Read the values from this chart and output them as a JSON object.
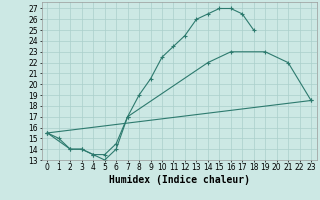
{
  "xlabel": "Humidex (Indice chaleur)",
  "background_color": "#cce8e4",
  "grid_color": "#aacfcb",
  "line_color": "#2d7a6e",
  "xlim": [
    -0.5,
    23.5
  ],
  "ylim": [
    13,
    27.6
  ],
  "yticks": [
    13,
    14,
    15,
    16,
    17,
    18,
    19,
    20,
    21,
    22,
    23,
    24,
    25,
    26,
    27
  ],
  "xticks": [
    0,
    1,
    2,
    3,
    4,
    5,
    6,
    7,
    8,
    9,
    10,
    11,
    12,
    13,
    14,
    15,
    16,
    17,
    18,
    19,
    20,
    21,
    22,
    23
  ],
  "line1_x": [
    0,
    1,
    2,
    3,
    4,
    5,
    6,
    7,
    8,
    9,
    10,
    11,
    12,
    13,
    14,
    15,
    16,
    17,
    18
  ],
  "line1_y": [
    15.5,
    15,
    14,
    14,
    13.5,
    13,
    14,
    17,
    19,
    20.5,
    22.5,
    23.5,
    24.5,
    26,
    26.5,
    27,
    27,
    26.5,
    25
  ],
  "line2_x": [
    0,
    2,
    3,
    4,
    5,
    6,
    7,
    14,
    16,
    19,
    21,
    23
  ],
  "line2_y": [
    15.5,
    14,
    14,
    13.5,
    13.5,
    14.5,
    17,
    22,
    23,
    23,
    22,
    18.5
  ],
  "line3_x": [
    0,
    23
  ],
  "line3_y": [
    15.5,
    18.5
  ],
  "tick_fontsize": 5.5,
  "xlabel_fontsize": 7
}
